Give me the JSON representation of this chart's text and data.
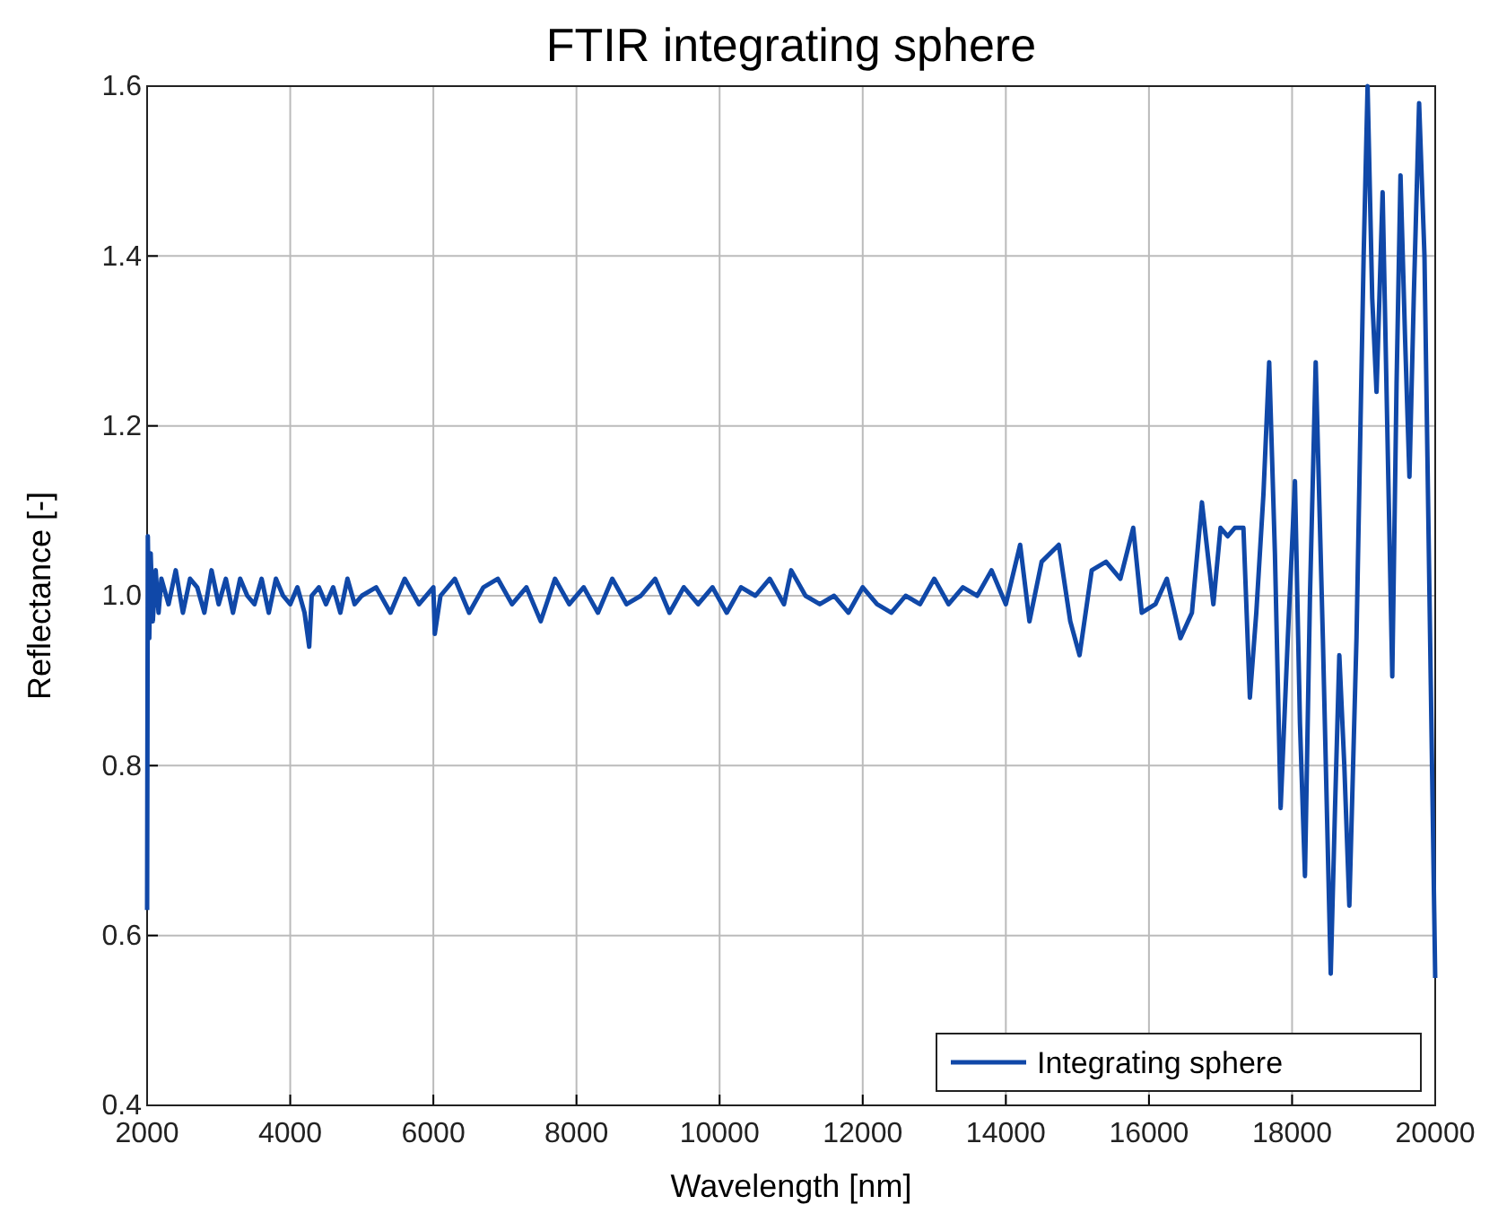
{
  "chart_data": {
    "type": "line",
    "title": "FTIR integrating sphere",
    "xlabel": "Wavelength [nm]",
    "ylabel": "Reflectance [-]",
    "xlim": [
      2000,
      20000
    ],
    "xticks": [
      2000,
      4000,
      6000,
      8000,
      10000,
      12000,
      14000,
      16000,
      18000,
      20000
    ],
    "ylim": [
      0.4,
      1.6
    ],
    "yticks": [
      {
        "value": 0.4,
        "label": "0.4"
      },
      {
        "value": 0.6,
        "label": "0.6"
      },
      {
        "value": 0.8,
        "label": "0.8"
      },
      {
        "value": 1,
        "label": "1.0"
      },
      {
        "value": 1.2,
        "label": "1.2"
      },
      {
        "value": 1.4,
        "label": "1.4"
      },
      {
        "value": 1.6,
        "label": "1.6"
      }
    ],
    "grid": true,
    "legend": "bottom right",
    "line_style": "solid",
    "marker": "none",
    "series": [
      {
        "name": "Integrating sphere",
        "color": "#1048a8",
        "x": [
          2000,
          2010,
          2030,
          2050,
          2080,
          2120,
          2160,
          2200,
          2300,
          2400,
          2500,
          2600,
          2700,
          2800,
          2900,
          3000,
          3100,
          3200,
          3300,
          3400,
          3500,
          3600,
          3700,
          3800,
          3900,
          4000,
          4100,
          4200,
          4265,
          4300,
          4400,
          4500,
          4600,
          4700,
          4800,
          4900,
          5000,
          5200,
          5400,
          5600,
          5800,
          6000,
          6020,
          6100,
          6300,
          6500,
          6700,
          6900,
          7100,
          7300,
          7500,
          7700,
          7900,
          8100,
          8300,
          8500,
          8700,
          8900,
          9100,
          9300,
          9500,
          9700,
          9900,
          10100,
          10300,
          10500,
          10700,
          10900,
          11000,
          11200,
          11400,
          11600,
          11800,
          12000,
          12200,
          12400,
          12600,
          12800,
          13000,
          13200,
          13400,
          13600,
          13800,
          14000,
          14200,
          14330,
          14500,
          14740,
          14900,
          15030,
          15200,
          15400,
          15600,
          15780,
          15900,
          16090,
          16250,
          16440,
          16600,
          16740,
          16900,
          17000,
          17100,
          17200,
          17320,
          17410,
          17500,
          17600,
          17680,
          17760,
          17840,
          17940,
          18040,
          18110,
          18180,
          18250,
          18330,
          18430,
          18540,
          18600,
          18660,
          18730,
          18800,
          18900,
          19000,
          19055,
          19120,
          19180,
          19265,
          19330,
          19400,
          19460,
          19515,
          19580,
          19640,
          19700,
          19775,
          19850,
          19920,
          20000
        ],
        "values": [
          0.63,
          1.07,
          0.95,
          1.05,
          0.97,
          1.03,
          0.98,
          1.02,
          0.99,
          1.03,
          0.98,
          1.02,
          1.01,
          0.98,
          1.03,
          0.99,
          1.02,
          0.98,
          1.02,
          1.0,
          0.99,
          1.02,
          0.98,
          1.02,
          1.0,
          0.99,
          1.01,
          0.98,
          0.94,
          1.0,
          1.01,
          0.99,
          1.01,
          0.98,
          1.02,
          0.99,
          1.0,
          1.01,
          0.98,
          1.02,
          0.99,
          1.01,
          0.955,
          1.0,
          1.02,
          0.98,
          1.01,
          1.02,
          0.99,
          1.01,
          0.97,
          1.02,
          0.99,
          1.01,
          0.98,
          1.02,
          0.99,
          1.0,
          1.02,
          0.98,
          1.01,
          0.99,
          1.01,
          0.98,
          1.01,
          1.0,
          1.02,
          0.99,
          1.03,
          1.0,
          0.99,
          1.0,
          0.98,
          1.01,
          0.99,
          0.98,
          1.0,
          0.99,
          1.02,
          0.99,
          1.01,
          1.0,
          1.03,
          0.99,
          1.06,
          0.97,
          1.04,
          1.06,
          0.97,
          0.93,
          1.03,
          1.04,
          1.02,
          1.08,
          0.98,
          0.99,
          1.02,
          0.95,
          0.98,
          1.11,
          0.99,
          1.08,
          1.07,
          1.08,
          1.08,
          0.88,
          0.98,
          1.12,
          1.275,
          1.05,
          0.75,
          0.95,
          1.135,
          0.85,
          0.67,
          1.0,
          1.275,
          0.95,
          0.555,
          0.75,
          0.93,
          0.8,
          0.635,
          0.95,
          1.4,
          1.6,
          1.35,
          1.24,
          1.475,
          1.2,
          0.905,
          1.25,
          1.495,
          1.3,
          1.14,
          1.35,
          1.58,
          1.4,
          1.0,
          0.55
        ]
      }
    ]
  }
}
